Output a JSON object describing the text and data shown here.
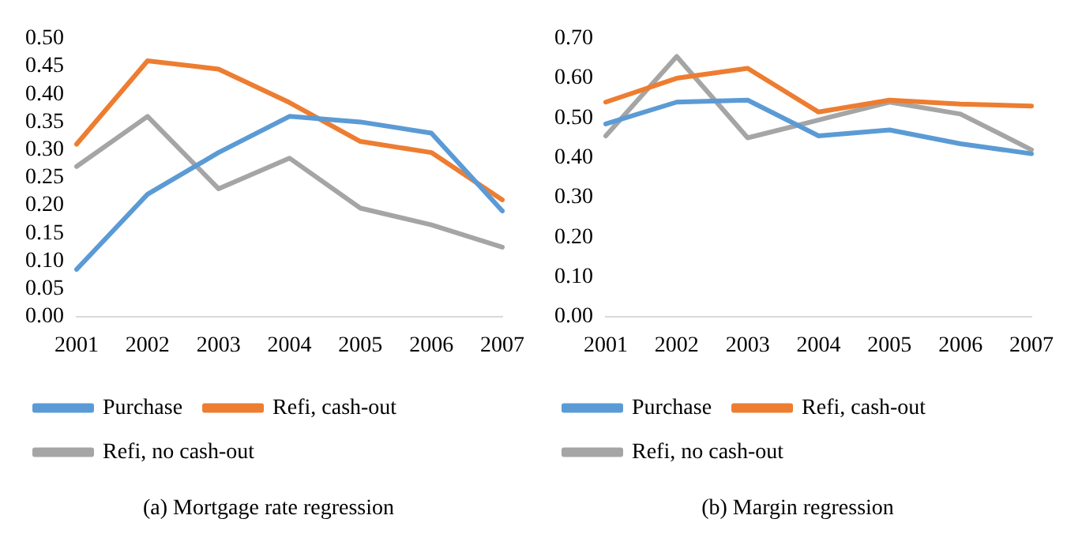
{
  "chart_data": [
    {
      "type": "line",
      "title": "(a) Mortgage rate regression",
      "categories": [
        "2001",
        "2002",
        "2003",
        "2004",
        "2005",
        "2006",
        "2007"
      ],
      "series": [
        {
          "name": "Purchase",
          "color": "#5b9bd5",
          "values": [
            0.085,
            0.22,
            0.295,
            0.36,
            0.35,
            0.33,
            0.19
          ]
        },
        {
          "name": "Refi, cash-out",
          "color": "#ed7d31",
          "values": [
            0.31,
            0.46,
            0.445,
            0.385,
            0.315,
            0.295,
            0.21
          ]
        },
        {
          "name": "Refi, no cash-out",
          "color": "#a5a5a5",
          "values": [
            0.27,
            0.36,
            0.23,
            0.285,
            0.195,
            0.165,
            0.125
          ]
        }
      ],
      "ylim": [
        0,
        0.5
      ],
      "yticks": [
        {
          "value": 0,
          "label": "0.00"
        },
        {
          "value": 0.05,
          "label": "0.05"
        },
        {
          "value": 0.1,
          "label": "0.10"
        },
        {
          "value": 0.15,
          "label": "0.15"
        },
        {
          "value": 0.2,
          "label": "0.20"
        },
        {
          "value": 0.25,
          "label": "0.25"
        },
        {
          "value": 0.3,
          "label": "0.30"
        },
        {
          "value": 0.35,
          "label": "0.35"
        },
        {
          "value": 0.4,
          "label": "0.40"
        },
        {
          "value": 0.45,
          "label": "0.45"
        },
        {
          "value": 0.5,
          "label": "0.50"
        }
      ],
      "grid": false,
      "legend": "bottom",
      "marker": "none",
      "line_style": "solid"
    },
    {
      "type": "line",
      "title": "(b) Margin regression",
      "categories": [
        "2001",
        "2002",
        "2003",
        "2004",
        "2005",
        "2006",
        "2007"
      ],
      "series": [
        {
          "name": "Purchase",
          "color": "#5b9bd5",
          "values": [
            0.485,
            0.54,
            0.545,
            0.455,
            0.47,
            0.435,
            0.41
          ]
        },
        {
          "name": "Refi, cash-out",
          "color": "#ed7d31",
          "values": [
            0.54,
            0.6,
            0.625,
            0.515,
            0.545,
            0.535,
            0.53
          ]
        },
        {
          "name": "Refi, no cash-out",
          "color": "#a5a5a5",
          "values": [
            0.455,
            0.655,
            0.45,
            0.495,
            0.54,
            0.51,
            0.42
          ]
        }
      ],
      "ylim": [
        0,
        0.7
      ],
      "yticks": [
        {
          "value": 0,
          "label": "0.00"
        },
        {
          "value": 0.1,
          "label": "0.10"
        },
        {
          "value": 0.2,
          "label": "0.20"
        },
        {
          "value": 0.3,
          "label": "0.30"
        },
        {
          "value": 0.4,
          "label": "0.40"
        },
        {
          "value": 0.5,
          "label": "0.50"
        },
        {
          "value": 0.6,
          "label": "0.60"
        },
        {
          "value": 0.7,
          "label": "0.70"
        }
      ],
      "grid": false,
      "legend": "bottom",
      "marker": "none",
      "line_style": "solid"
    }
  ]
}
